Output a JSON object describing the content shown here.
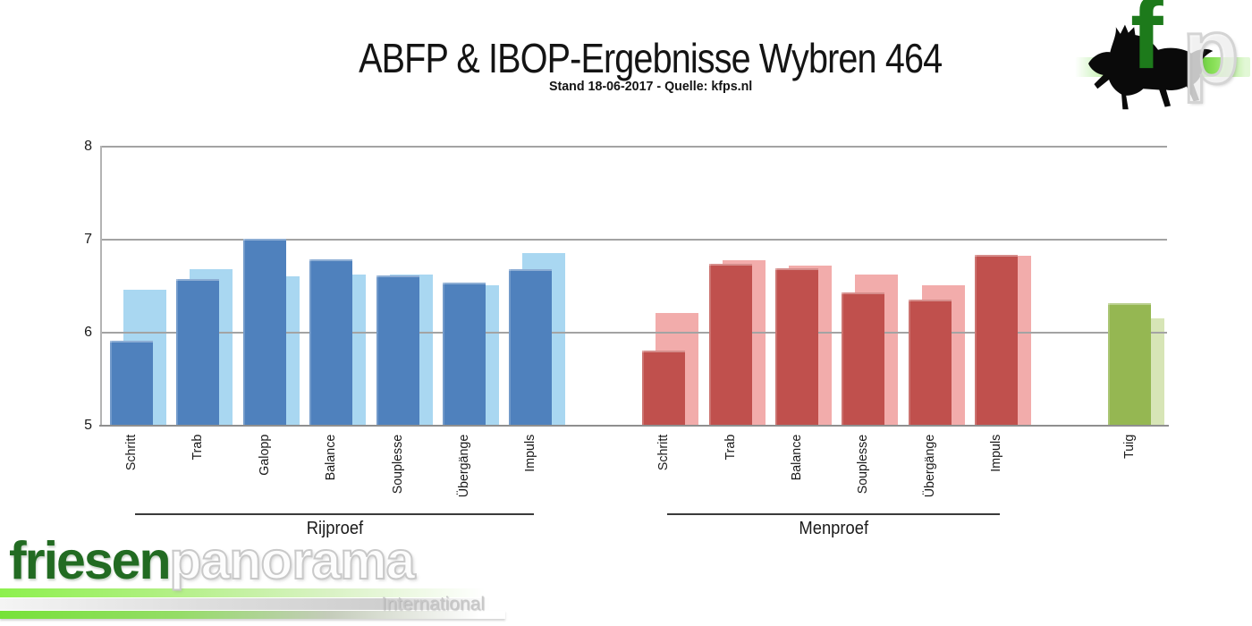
{
  "title": "ABFP & IBOP-Ergebnisse Wybren 464",
  "subtitle": "Stand 18-06-2017 - Quelle: kfps.nl",
  "logo": {
    "letter_f": "f",
    "letter_p": "p"
  },
  "watermark": {
    "brand_green": "friesen",
    "brand_light": "panorama",
    "tagline": "International"
  },
  "colors": {
    "rijproef_front": "#4F81BD",
    "rijproef_back": "#A9D7F1",
    "menproef_front": "#C0504D",
    "menproef_back": "#F2ACAB",
    "tuig_front": "#95B752",
    "tuig_back": "#D7E5B6",
    "gridline": "#A3A3A3"
  },
  "chart_data": {
    "type": "bar",
    "title": "ABFP & IBOP-Ergebnisse Wybren 464",
    "subtitle": "Stand 18-06-2017 - Quelle: kfps.nl",
    "ylim": [
      5,
      8
    ],
    "yticks": [
      5,
      6,
      7,
      8
    ],
    "grid": true,
    "legend_position": "none",
    "note": "Each category shows a light back bar (offset right) and a dark front bar",
    "groups": [
      {
        "label": "Rijproef",
        "front_color": "#4F81BD",
        "back_color": "#A9D7F1",
        "categories": [
          "Schritt",
          "Trab",
          "Galopp",
          "Balance",
          "Souplesse",
          "Übergänge",
          "Impuls"
        ],
        "front_values": [
          5.9,
          6.57,
          7.0,
          6.78,
          6.61,
          6.53,
          6.67
        ],
        "back_values": [
          6.45,
          6.67,
          6.6,
          6.62,
          6.62,
          6.5,
          6.85
        ],
        "show_label": true
      },
      {
        "label": "Menproef",
        "front_color": "#C0504D",
        "back_color": "#F2ACAB",
        "categories": [
          "Schritt",
          "Trab",
          "Balance",
          "Souplesse",
          "Übergänge",
          "Impuls"
        ],
        "front_values": [
          5.8,
          6.73,
          6.68,
          6.42,
          6.35,
          6.83
        ],
        "back_values": [
          6.2,
          6.77,
          6.71,
          6.62,
          6.5,
          6.82
        ],
        "show_label": true
      },
      {
        "label": "",
        "front_color": "#95B752",
        "back_color": "#D7E5B6",
        "categories": [
          "Tuig"
        ],
        "front_values": [
          6.31
        ],
        "back_values": [
          6.14
        ],
        "show_label": false
      }
    ]
  }
}
